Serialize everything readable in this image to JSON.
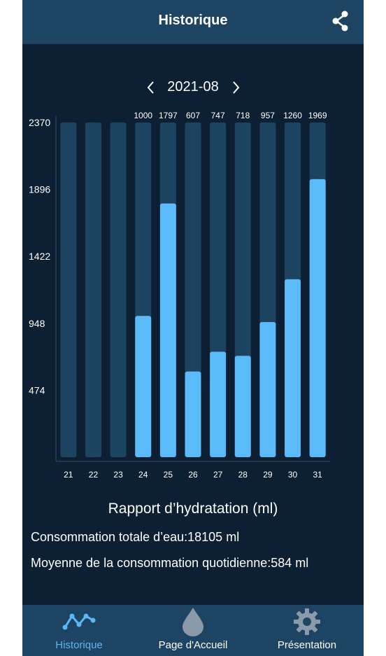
{
  "header": {
    "title": "Historique",
    "share_icon": "share-icon"
  },
  "month_nav": {
    "label": "2021-08",
    "prev_icon": "chevron-left-icon",
    "next_icon": "chevron-right-icon"
  },
  "colors": {
    "background": "#0d2033",
    "header": "#1d4563",
    "bar_track": "#1c4461",
    "bar_fill": "#5bbaf8",
    "active": "#5bb8f5"
  },
  "chart_data": {
    "type": "bar",
    "categories": [
      "21",
      "22",
      "23",
      "24",
      "25",
      "26",
      "27",
      "28",
      "29",
      "30",
      "31"
    ],
    "values": [
      0,
      0,
      0,
      1000,
      1797,
      607,
      747,
      718,
      957,
      1260,
      1969
    ],
    "value_labels": [
      "",
      "",
      "",
      "1000",
      "1797",
      "607",
      "747",
      "718",
      "957",
      "1260",
      "1969"
    ],
    "y_ticks": [
      2370,
      1896,
      1422,
      948,
      474
    ],
    "ylim": [
      0,
      2370
    ],
    "grid": false,
    "legend": "none"
  },
  "report": {
    "title": "Rapport d’hydratation (ml)",
    "total_label": "Consommation totale d’eau:",
    "total_value": "18105 ml",
    "avg_label": "Moyenne de la consommation quotidienne:",
    "avg_value": "584 ml"
  },
  "nav": {
    "items": [
      {
        "label": "Historique",
        "icon": "chart-line-icon",
        "active": true
      },
      {
        "label": "Page d'Accueil",
        "icon": "water-drop-icon",
        "active": false
      },
      {
        "label": "Présentation",
        "icon": "gear-icon",
        "active": false
      }
    ]
  }
}
